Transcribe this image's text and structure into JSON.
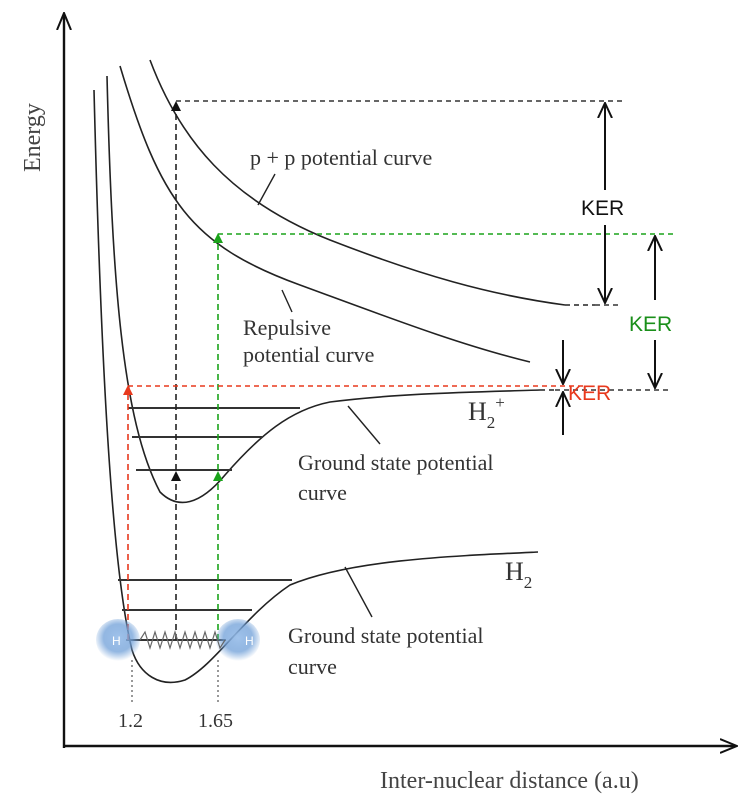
{
  "axes": {
    "y_label": "Energy",
    "x_label": "Inter-nuclear distance (a.u)"
  },
  "curves": {
    "pp_label": "p + p potential curve",
    "repulsive_label_line1": "Repulsive",
    "repulsive_label_line2": "potential curve",
    "ion_ground_label_line1": "Ground state potential",
    "ion_ground_label_line2": "curve",
    "neutral_ground_label_line1": "Ground state potential",
    "neutral_ground_label_line2": "curve"
  },
  "species": {
    "ion_base": "H",
    "ion_sub": "2",
    "ion_sup": "+",
    "neutral_base": "H",
    "neutral_sub": "2"
  },
  "ker": {
    "black": "KER",
    "green": "KER",
    "red": "KER"
  },
  "distances": {
    "left": "1.2",
    "right": "1.65"
  },
  "atoms": {
    "left": "H",
    "right": "H"
  },
  "colors": {
    "line": "#222222",
    "red": "#e8391d",
    "green": "#1aa31a",
    "green_text": "#1a8f1a",
    "atom": "#6f9fd8"
  }
}
